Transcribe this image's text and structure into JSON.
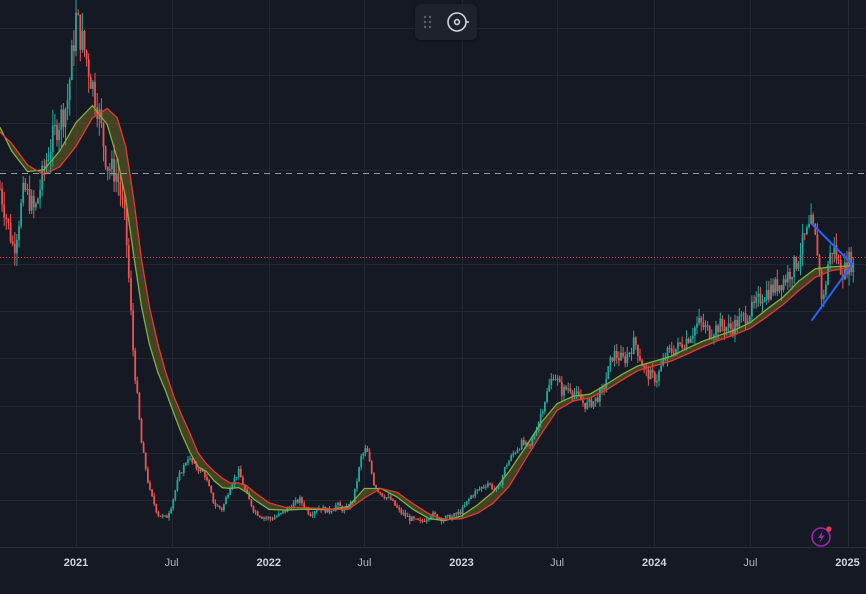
{
  "chart_data": {
    "type": "candlestick",
    "x_ticks": [
      {
        "date": "2021-01-01",
        "label": "2021",
        "year": true
      },
      {
        "date": "2021-07-01",
        "label": "Jul",
        "year": false
      },
      {
        "date": "2022-01-01",
        "label": "2022",
        "year": true
      },
      {
        "date": "2022-07-01",
        "label": "Jul",
        "year": false
      },
      {
        "date": "2023-01-01",
        "label": "2023",
        "year": true
      },
      {
        "date": "2023-07-01",
        "label": "Jul",
        "year": false
      },
      {
        "date": "2024-01-01",
        "label": "2024",
        "year": true
      },
      {
        "date": "2024-07-01",
        "label": "Jul",
        "year": false
      },
      {
        "date": "2025-01-01",
        "label": "2025",
        "year": true
      }
    ],
    "price_path": [
      [
        "2020-08-10",
        380
      ],
      [
        "2020-09-05",
        315
      ],
      [
        "2020-09-25",
        380
      ],
      [
        "2020-10-15",
        355
      ],
      [
        "2020-11-05",
        410
      ],
      [
        "2020-11-25",
        445
      ],
      [
        "2020-12-15",
        470
      ],
      [
        "2021-01-01",
        560
      ],
      [
        "2021-01-20",
        520
      ],
      [
        "2021-02-10",
        470
      ],
      [
        "2021-03-01",
        405
      ],
      [
        "2021-03-20",
        395
      ],
      [
        "2021-04-05",
        340
      ],
      [
        "2021-04-20",
        200
      ],
      [
        "2021-05-05",
        110
      ],
      [
        "2021-05-20",
        60
      ],
      [
        "2021-06-05",
        35
      ],
      [
        "2021-06-20",
        30
      ],
      [
        "2021-07-01",
        45
      ],
      [
        "2021-07-15",
        75
      ],
      [
        "2021-08-01",
        95
      ],
      [
        "2021-08-15",
        85
      ],
      [
        "2021-09-01",
        78
      ],
      [
        "2021-09-20",
        45
      ],
      [
        "2021-10-05",
        40
      ],
      [
        "2021-10-20",
        65
      ],
      [
        "2021-11-05",
        80
      ],
      [
        "2021-11-20",
        55
      ],
      [
        "2021-12-05",
        38
      ],
      [
        "2021-12-20",
        32
      ],
      [
        "2022-01-05",
        30
      ],
      [
        "2022-01-25",
        35
      ],
      [
        "2022-02-15",
        45
      ],
      [
        "2022-03-01",
        50
      ],
      [
        "2022-03-20",
        35
      ],
      [
        "2022-04-05",
        42
      ],
      [
        "2022-04-25",
        38
      ],
      [
        "2022-05-10",
        45
      ],
      [
        "2022-05-25",
        38
      ],
      [
        "2022-06-10",
        50
      ],
      [
        "2022-06-25",
        95
      ],
      [
        "2022-07-05",
        105
      ],
      [
        "2022-07-20",
        65
      ],
      [
        "2022-08-05",
        55
      ],
      [
        "2022-08-20",
        50
      ],
      [
        "2022-09-05",
        38
      ],
      [
        "2022-09-25",
        30
      ],
      [
        "2022-10-15",
        26
      ],
      [
        "2022-11-05",
        35
      ],
      [
        "2022-11-25",
        30
      ],
      [
        "2022-12-15",
        32
      ],
      [
        "2023-01-01",
        38
      ],
      [
        "2023-01-20",
        55
      ],
      [
        "2023-02-05",
        62
      ],
      [
        "2023-02-20",
        68
      ],
      [
        "2023-03-10",
        58
      ],
      [
        "2023-03-25",
        85
      ],
      [
        "2023-04-10",
        100
      ],
      [
        "2023-04-25",
        110
      ],
      [
        "2023-05-10",
        105
      ],
      [
        "2023-05-25",
        130
      ],
      [
        "2023-06-10",
        160
      ],
      [
        "2023-06-25",
        185
      ],
      [
        "2023-07-10",
        165
      ],
      [
        "2023-07-25",
        170
      ],
      [
        "2023-08-10",
        158
      ],
      [
        "2023-08-25",
        150
      ],
      [
        "2023-09-10",
        155
      ],
      [
        "2023-09-25",
        165
      ],
      [
        "2023-10-15",
        205
      ],
      [
        "2023-11-05",
        198
      ],
      [
        "2023-11-25",
        218
      ],
      [
        "2023-12-15",
        185
      ],
      [
        "2024-01-05",
        178
      ],
      [
        "2024-01-25",
        205
      ],
      [
        "2024-02-15",
        212
      ],
      [
        "2024-03-05",
        222
      ],
      [
        "2024-03-25",
        238
      ],
      [
        "2024-04-15",
        228
      ],
      [
        "2024-05-05",
        235
      ],
      [
        "2024-05-25",
        232
      ],
      [
        "2024-06-15",
        242
      ],
      [
        "2024-07-05",
        252
      ],
      [
        "2024-07-25",
        268
      ],
      [
        "2024-08-15",
        275
      ],
      [
        "2024-09-05",
        285
      ],
      [
        "2024-09-25",
        300
      ],
      [
        "2024-10-10",
        325
      ],
      [
        "2024-10-25",
        342
      ],
      [
        "2024-11-05",
        315
      ],
      [
        "2024-11-15",
        255
      ],
      [
        "2024-11-25",
        300
      ],
      [
        "2024-12-05",
        320
      ],
      [
        "2024-12-15",
        300
      ],
      [
        "2024-12-25",
        292
      ],
      [
        "2025-01-05",
        305
      ],
      [
        "2025-01-12",
        298
      ]
    ],
    "fast_ma_path": [
      [
        "2020-08-10",
        445
      ],
      [
        "2020-09-01",
        420
      ],
      [
        "2020-10-01",
        398
      ],
      [
        "2020-11-01",
        400
      ],
      [
        "2020-12-01",
        420
      ],
      [
        "2021-01-01",
        450
      ],
      [
        "2021-02-01",
        468
      ],
      [
        "2021-03-01",
        448
      ],
      [
        "2021-03-20",
        412
      ],
      [
        "2021-04-05",
        370
      ],
      [
        "2021-04-20",
        310
      ],
      [
        "2021-05-05",
        255
      ],
      [
        "2021-05-20",
        215
      ],
      [
        "2021-06-05",
        185
      ],
      [
        "2021-06-20",
        165
      ],
      [
        "2021-07-05",
        142
      ],
      [
        "2021-07-20",
        120
      ],
      [
        "2021-08-05",
        100
      ],
      [
        "2021-08-20",
        85
      ],
      [
        "2021-09-05",
        80
      ],
      [
        "2021-09-20",
        70
      ],
      [
        "2021-10-05",
        63
      ],
      [
        "2021-10-20",
        62
      ],
      [
        "2021-11-05",
        63
      ],
      [
        "2021-11-20",
        58
      ],
      [
        "2021-12-05",
        50
      ],
      [
        "2022-01-01",
        40
      ],
      [
        "2022-02-01",
        39
      ],
      [
        "2022-03-01",
        40
      ],
      [
        "2022-04-01",
        40
      ],
      [
        "2022-05-01",
        40
      ],
      [
        "2022-06-01",
        43
      ],
      [
        "2022-07-01",
        62
      ],
      [
        "2022-08-01",
        62
      ],
      [
        "2022-09-01",
        53
      ],
      [
        "2022-10-01",
        40
      ],
      [
        "2022-11-01",
        30
      ],
      [
        "2022-12-01",
        28
      ],
      [
        "2023-01-01",
        33
      ],
      [
        "2023-02-01",
        45
      ],
      [
        "2023-03-01",
        58
      ],
      [
        "2023-04-01",
        80
      ],
      [
        "2023-05-01",
        105
      ],
      [
        "2023-06-01",
        132
      ],
      [
        "2023-07-01",
        152
      ],
      [
        "2023-08-01",
        160
      ],
      [
        "2023-09-01",
        162
      ],
      [
        "2023-10-01",
        172
      ],
      [
        "2023-11-01",
        183
      ],
      [
        "2023-12-01",
        192
      ],
      [
        "2024-01-01",
        197
      ],
      [
        "2024-02-01",
        202
      ],
      [
        "2024-03-01",
        210
      ],
      [
        "2024-04-01",
        218
      ],
      [
        "2024-05-01",
        224
      ],
      [
        "2024-06-01",
        230
      ],
      [
        "2024-07-01",
        238
      ],
      [
        "2024-08-01",
        252
      ],
      [
        "2024-09-01",
        265
      ],
      [
        "2024-10-01",
        282
      ],
      [
        "2024-11-01",
        295
      ],
      [
        "2024-12-01",
        297
      ],
      [
        "2025-01-01",
        298
      ],
      [
        "2025-01-12",
        298
      ]
    ],
    "slow_ma_path": [
      [
        "2020-08-10",
        440
      ],
      [
        "2020-09-01",
        428
      ],
      [
        "2020-10-01",
        405
      ],
      [
        "2020-11-01",
        395
      ],
      [
        "2020-12-01",
        403
      ],
      [
        "2021-01-01",
        425
      ],
      [
        "2021-02-01",
        455
      ],
      [
        "2021-03-01",
        465
      ],
      [
        "2021-03-20",
        455
      ],
      [
        "2021-04-05",
        425
      ],
      [
        "2021-04-20",
        370
      ],
      [
        "2021-05-05",
        305
      ],
      [
        "2021-05-20",
        255
      ],
      [
        "2021-06-05",
        215
      ],
      [
        "2021-06-20",
        185
      ],
      [
        "2021-07-05",
        160
      ],
      [
        "2021-07-20",
        140
      ],
      [
        "2021-08-05",
        120
      ],
      [
        "2021-08-20",
        100
      ],
      [
        "2021-09-05",
        88
      ],
      [
        "2021-09-20",
        80
      ],
      [
        "2021-10-05",
        73
      ],
      [
        "2021-10-20",
        68
      ],
      [
        "2021-11-05",
        68
      ],
      [
        "2021-11-20",
        65
      ],
      [
        "2021-12-05",
        58
      ],
      [
        "2022-01-01",
        47
      ],
      [
        "2022-02-01",
        42
      ],
      [
        "2022-03-01",
        42
      ],
      [
        "2022-04-01",
        41
      ],
      [
        "2022-05-01",
        40
      ],
      [
        "2022-06-01",
        40
      ],
      [
        "2022-07-01",
        52
      ],
      [
        "2022-08-01",
        62
      ],
      [
        "2022-09-01",
        58
      ],
      [
        "2022-10-01",
        46
      ],
      [
        "2022-11-01",
        35
      ],
      [
        "2022-12-01",
        29
      ],
      [
        "2023-01-01",
        30
      ],
      [
        "2023-02-01",
        36
      ],
      [
        "2023-03-01",
        46
      ],
      [
        "2023-04-01",
        64
      ],
      [
        "2023-05-01",
        92
      ],
      [
        "2023-06-01",
        120
      ],
      [
        "2023-07-01",
        145
      ],
      [
        "2023-08-01",
        155
      ],
      [
        "2023-09-01",
        158
      ],
      [
        "2023-10-01",
        166
      ],
      [
        "2023-11-01",
        177
      ],
      [
        "2023-12-01",
        187
      ],
      [
        "2024-01-01",
        192
      ],
      [
        "2024-02-01",
        197
      ],
      [
        "2024-03-01",
        204
      ],
      [
        "2024-04-01",
        212
      ],
      [
        "2024-05-01",
        219
      ],
      [
        "2024-06-01",
        225
      ],
      [
        "2024-07-01",
        232
      ],
      [
        "2024-08-01",
        244
      ],
      [
        "2024-09-01",
        257
      ],
      [
        "2024-10-01",
        272
      ],
      [
        "2024-11-01",
        286
      ],
      [
        "2024-12-01",
        293
      ],
      [
        "2025-01-01",
        296
      ],
      [
        "2025-01-12",
        297
      ]
    ],
    "triangle_pattern": [
      [
        "2024-10-25",
        343
      ],
      [
        "2025-01-10",
        300
      ],
      [
        "2024-10-25",
        240
      ]
    ],
    "reference_levels": [
      {
        "value": 397,
        "style": "dashed"
      },
      {
        "value": 307,
        "style": "dotted"
      }
    ],
    "y_range": [
      0,
      580
    ],
    "x_range": [
      "2020-08-10",
      "2025-02-05"
    ],
    "grid": true,
    "colors": {
      "background": "#151924",
      "grid": "#232633",
      "up_candle": "#26a69a",
      "down_candle": "#ef5350",
      "fast_ma": "#7cb342",
      "slow_ma": "#e53935",
      "ribbon_fill": "#6b6420",
      "triangle": "#2962ff",
      "dashed_level": "#9598a1",
      "dotted_level": "#f23645",
      "axis_text": "#b2b5be",
      "toolbar_bg": "#1e222d",
      "bolt_accent": "#9c27b0",
      "bolt_dot": "#f23645"
    }
  },
  "toolbar": {
    "drag_icon": "drag-handle-icon",
    "settings_icon": "settings-circle-icon"
  },
  "quick_action": {
    "icon": "lightning-bolt-icon"
  }
}
